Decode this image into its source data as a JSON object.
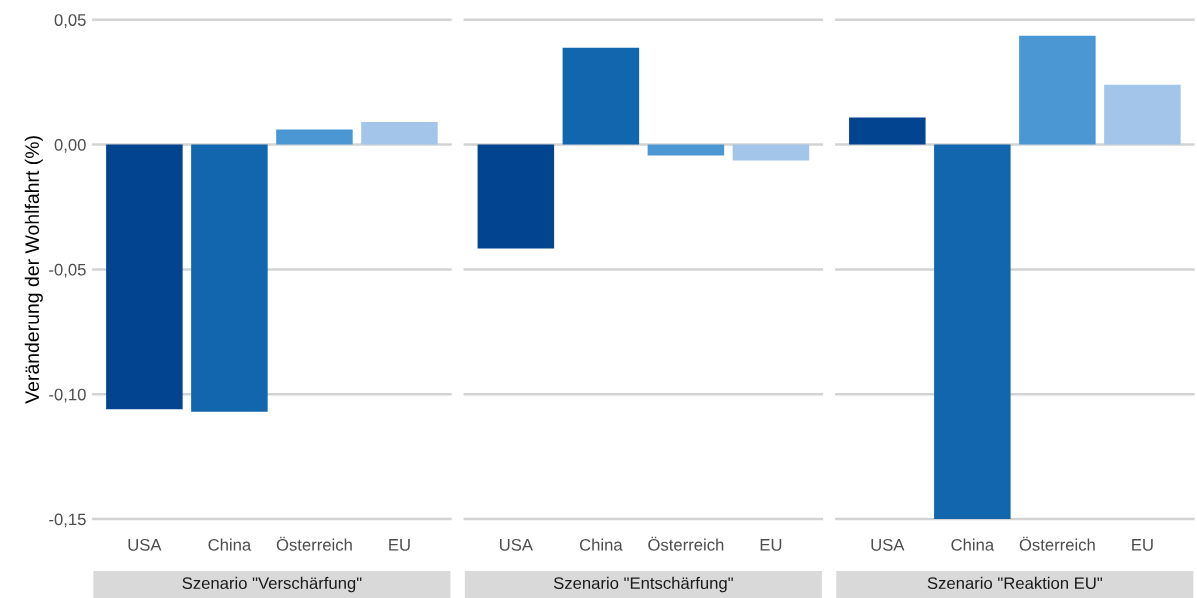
{
  "chart_data": [
    {
      "type": "bar",
      "title": "Szenario \"Verschärfung\"",
      "ylabel": "Veränderung der Wohlfahrt (%)",
      "categories": [
        "USA",
        "China",
        "Österreich",
        "EU"
      ],
      "values": [
        -0.106,
        -0.107,
        0.006,
        0.009
      ],
      "colors": [
        "#02448f",
        "#1166ad",
        "#4b97d3",
        "#a3c5e9"
      ],
      "ylim": [
        -0.15,
        0.05
      ],
      "yticks": [
        {
          "value": -0.15,
          "label": "-0,15"
        },
        {
          "value": -0.1,
          "label": "-0,10"
        },
        {
          "value": -0.05,
          "label": "-0,05"
        },
        {
          "value": 0,
          "label": "0,00"
        },
        {
          "value": 0.05,
          "label": "0,05"
        }
      ],
      "grid": "y"
    },
    {
      "type": "bar",
      "title": "Szenario \"Entschärfung\"",
      "categories": [
        "USA",
        "China",
        "Österreich",
        "EU"
      ],
      "values": [
        -0.0416,
        0.0388,
        -0.0044,
        -0.0064
      ],
      "colors": [
        "#02448f",
        "#1166ad",
        "#4b97d3",
        "#a3c5e9"
      ],
      "ylim": [
        -0.15,
        0.05
      ],
      "yticks": [
        {
          "value": -0.15,
          "label": null
        },
        {
          "value": -0.1,
          "label": null
        },
        {
          "value": -0.05,
          "label": null
        },
        {
          "value": 0,
          "label": null
        },
        {
          "value": 0.05,
          "label": null
        }
      ],
      "grid": "y",
      "tick_labels": "x"
    },
    {
      "type": "bar",
      "title": "Szenario \"Reaktion EU\"",
      "categories": [
        "USA",
        "China",
        "Österreich",
        "EU"
      ],
      "values": [
        0.0108,
        -0.15,
        0.0436,
        0.024
      ],
      "colors": [
        "#02448f",
        "#1166ad",
        "#4b97d3",
        "#a3c5e9"
      ],
      "ylim": [
        -0.15,
        0.05
      ],
      "yticks": [
        {
          "value": -0.15,
          "label": null
        },
        {
          "value": -0.1,
          "label": null
        },
        {
          "value": -0.05,
          "label": null
        },
        {
          "value": 0,
          "label": null
        },
        {
          "value": 0.05,
          "label": null
        }
      ],
      "grid": "y",
      "tick_labels": "x"
    }
  ]
}
